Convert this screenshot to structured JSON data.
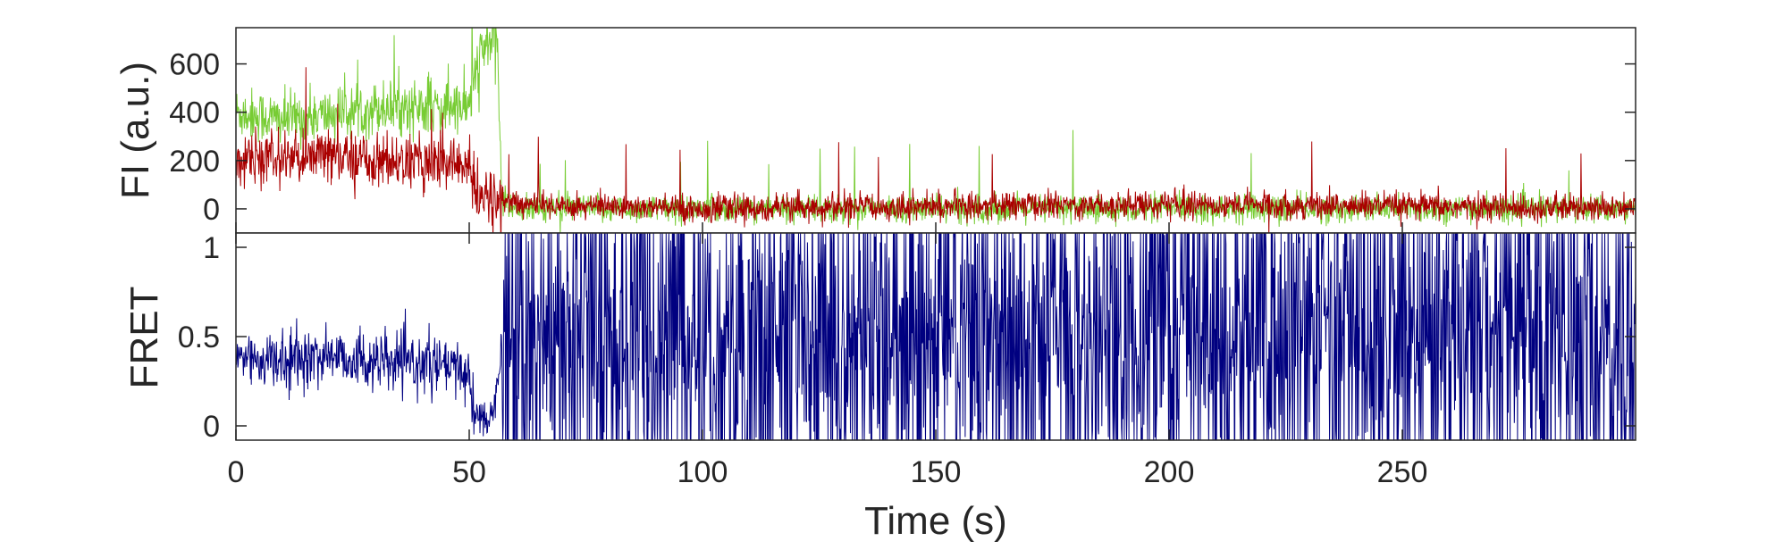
{
  "chart_data": [
    {
      "type": "line",
      "panel": "top",
      "ylabel": "FI (a.u.)",
      "xlim": [
        0,
        300
      ],
      "ylim": [
        -100,
        750
      ],
      "yticks": [
        0,
        200,
        400,
        600
      ],
      "ytick_labels": [
        "0",
        "200",
        "400",
        "600"
      ],
      "grid": false,
      "series": [
        {
          "color": "#77cc33",
          "x": [
            0,
            10,
            20,
            30,
            40,
            50,
            51,
            54,
            56,
            57,
            60,
            80,
            100,
            120,
            150,
            200,
            250,
            300
          ],
          "values": [
            400,
            370,
            390,
            420,
            420,
            420,
            540,
            700,
            700,
            40,
            0,
            0,
            0,
            0,
            0,
            0,
            0,
            0
          ]
        },
        {
          "color": "#aa0000",
          "x": [
            0,
            10,
            20,
            30,
            40,
            50,
            51,
            52,
            56,
            60,
            100,
            150,
            200,
            250,
            300
          ],
          "values": [
            200,
            210,
            220,
            200,
            190,
            190,
            60,
            40,
            40,
            20,
            0,
            10,
            20,
            10,
            0
          ]
        }
      ]
    },
    {
      "type": "line",
      "panel": "bottom",
      "ylabel": "FRET",
      "xlabel": "Time (s)",
      "xlim": [
        0,
        300
      ],
      "ylim": [
        -0.08,
        1.08
      ],
      "xticks": [
        0,
        50,
        100,
        150,
        200,
        250
      ],
      "xtick_labels": [
        "0",
        "50",
        "100",
        "150",
        "200",
        "250"
      ],
      "yticks": [
        0,
        0.5,
        1
      ],
      "ytick_labels": [
        "0",
        "0.5",
        "1"
      ],
      "grid": false,
      "series": [
        {
          "color": "#000080",
          "x": [
            0,
            10,
            20,
            30,
            40,
            50,
            51,
            55,
            57,
            58,
            100,
            150,
            200,
            250,
            300
          ],
          "values": [
            0.4,
            0.35,
            0.4,
            0.35,
            0.35,
            0.3,
            0.05,
            0.05,
            0.5,
            0.5,
            0.5,
            0.5,
            0.5,
            0.5,
            0.5
          ]
        }
      ]
    }
  ]
}
